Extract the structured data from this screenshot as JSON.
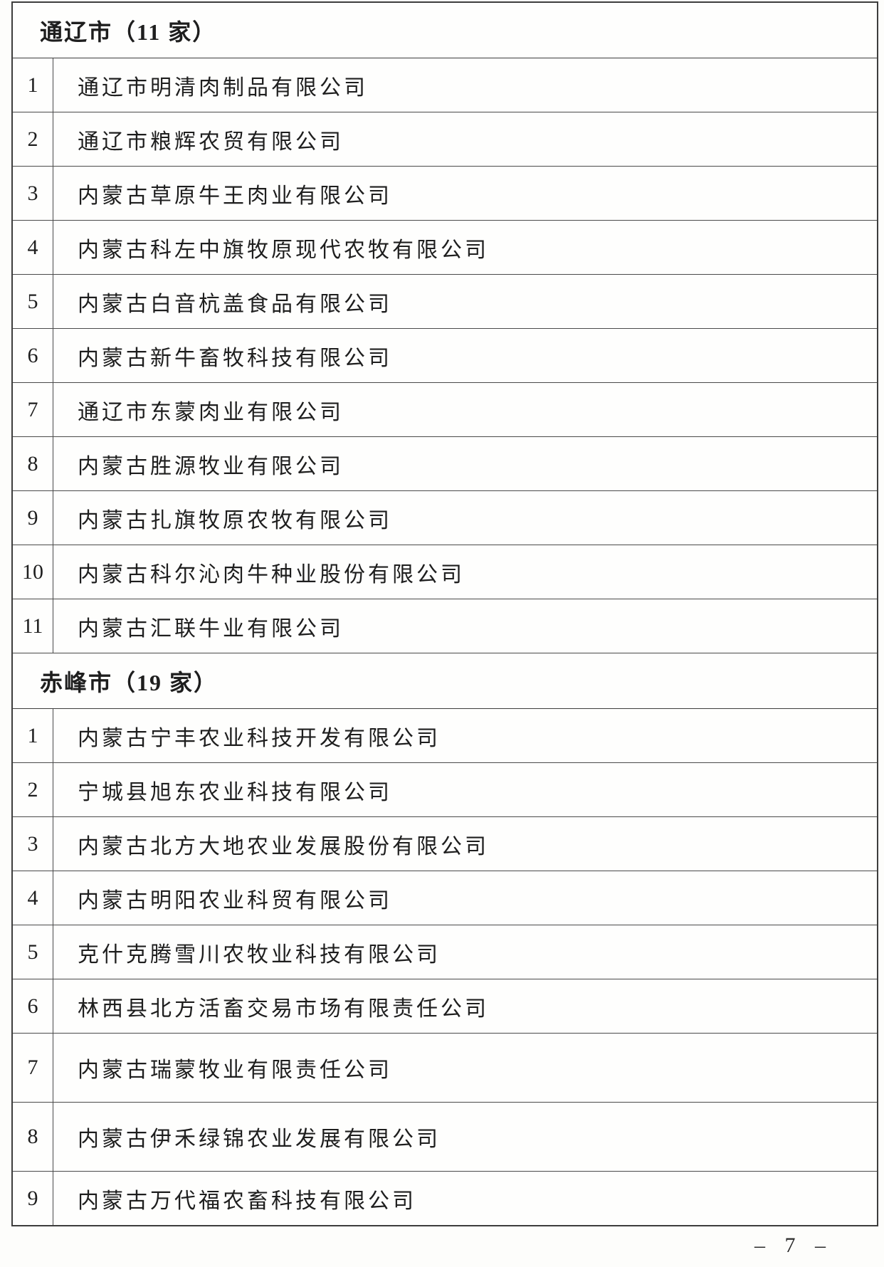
{
  "page": {
    "page_number": "– 7 –"
  },
  "table": {
    "sections": [
      {
        "header": "通辽市（11 家）",
        "rows": [
          {
            "num": "1",
            "name": "通辽市明清肉制品有限公司"
          },
          {
            "num": "2",
            "name": "通辽市粮辉农贸有限公司"
          },
          {
            "num": "3",
            "name": "内蒙古草原牛王肉业有限公司"
          },
          {
            "num": "4",
            "name": "内蒙古科左中旗牧原现代农牧有限公司"
          },
          {
            "num": "5",
            "name": "内蒙古白音杭盖食品有限公司"
          },
          {
            "num": "6",
            "name": "内蒙古新牛畜牧科技有限公司"
          },
          {
            "num": "7",
            "name": "通辽市东蒙肉业有限公司"
          },
          {
            "num": "8",
            "name": "内蒙古胜源牧业有限公司"
          },
          {
            "num": "9",
            "name": "内蒙古扎旗牧原农牧有限公司"
          },
          {
            "num": "10",
            "name": "内蒙古科尔沁肉牛种业股份有限公司"
          },
          {
            "num": "11",
            "name": "内蒙古汇联牛业有限公司"
          }
        ]
      },
      {
        "header": "赤峰市（19 家）",
        "rows": [
          {
            "num": "1",
            "name": "内蒙古宁丰农业科技开发有限公司"
          },
          {
            "num": "2",
            "name": "宁城县旭东农业科技有限公司"
          },
          {
            "num": "3",
            "name": "内蒙古北方大地农业发展股份有限公司"
          },
          {
            "num": "4",
            "name": "内蒙古明阳农业科贸有限公司"
          },
          {
            "num": "5",
            "name": "克什克腾雪川农牧业科技有限公司"
          },
          {
            "num": "6",
            "name": "林西县北方活畜交易市场有限责任公司"
          },
          {
            "num": "7",
            "name": "内蒙古瑞蒙牧业有限责任公司"
          },
          {
            "num": "8",
            "name": "内蒙古伊禾绿锦农业发展有限公司"
          },
          {
            "num": "9",
            "name": "内蒙古万代福农畜科技有限公司"
          }
        ]
      }
    ]
  }
}
